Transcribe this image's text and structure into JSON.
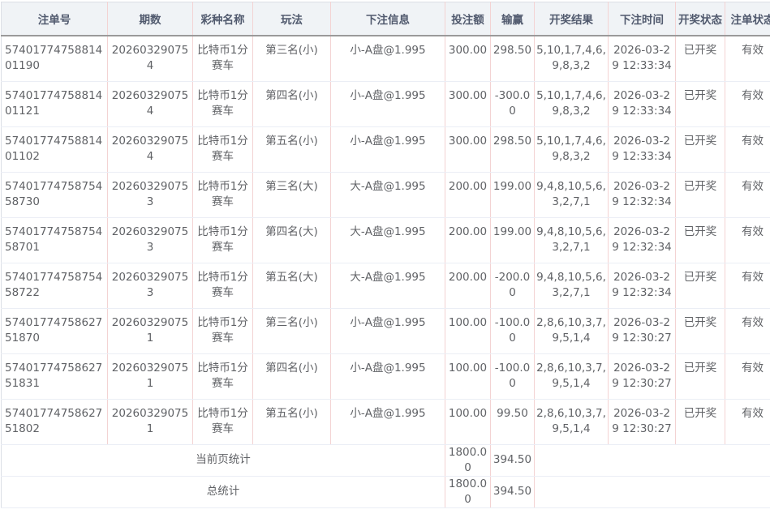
{
  "headers": [
    "注单号",
    "期数",
    "彩种名称",
    "玩法",
    "下注信息",
    "投注额",
    "输赢",
    "开奖结果",
    "下注时间",
    "开奖状态",
    "注单状态"
  ],
  "rows": [
    [
      "5740177475881401190",
      "202603290754",
      "比特币1分赛车",
      "第三名(小)",
      "小-A盘@1.995",
      "300.00",
      "298.50",
      "5,10,1,7,4,6,9,8,3,2",
      "2026-03-29 12:33:34",
      "已开奖",
      "有效"
    ],
    [
      "5740177475881401121",
      "202603290754",
      "比特币1分赛车",
      "第四名(小)",
      "小-A盘@1.995",
      "300.00",
      "-300.00",
      "5,10,1,7,4,6,9,8,3,2",
      "2026-03-29 12:33:34",
      "已开奖",
      "有效"
    ],
    [
      "5740177475881401102",
      "202603290754",
      "比特币1分赛车",
      "第五名(小)",
      "小-A盘@1.995",
      "300.00",
      "298.50",
      "5,10,1,7,4,6,9,8,3,2",
      "2026-03-29 12:33:34",
      "已开奖",
      "有效"
    ],
    [
      "5740177475875458730",
      "202603290753",
      "比特币1分赛车",
      "第三名(大)",
      "大-A盘@1.995",
      "200.00",
      "199.00",
      "9,4,8,10,5,6,3,2,7,1",
      "2026-03-29 12:32:34",
      "已开奖",
      "有效"
    ],
    [
      "5740177475875458701",
      "202603290753",
      "比特币1分赛车",
      "第四名(大)",
      "大-A盘@1.995",
      "200.00",
      "199.00",
      "9,4,8,10,5,6,3,2,7,1",
      "2026-03-29 12:32:34",
      "已开奖",
      "有效"
    ],
    [
      "5740177475875458722",
      "202603290753",
      "比特币1分赛车",
      "第五名(大)",
      "大-A盘@1.995",
      "200.00",
      "-200.00",
      "9,4,8,10,5,6,3,2,7,1",
      "2026-03-29 12:32:34",
      "已开奖",
      "有效"
    ],
    [
      "5740177475862751870",
      "202603290751",
      "比特币1分赛车",
      "第三名(小)",
      "小-A盘@1.995",
      "100.00",
      "-100.00",
      "2,8,6,10,3,7,9,5,1,4",
      "2026-03-29 12:30:27",
      "已开奖",
      "有效"
    ],
    [
      "5740177475862751831",
      "202603290751",
      "比特币1分赛车",
      "第四名(小)",
      "小-A盘@1.995",
      "100.00",
      "-100.00",
      "2,8,6,10,3,7,9,5,1,4",
      "2026-03-29 12:30:27",
      "已开奖",
      "有效"
    ],
    [
      "5740177475862751802",
      "202603290751",
      "比特币1分赛车",
      "第五名(小)",
      "小-A盘@1.995",
      "100.00",
      "99.50",
      "2,8,6,10,3,7,9,5,1,4",
      "2026-03-29 12:30:27",
      "已开奖",
      "有效"
    ]
  ],
  "summary": [
    {
      "label": "当前页统计",
      "amount": "1800.00",
      "profit": "394.50"
    },
    {
      "label": "总统计",
      "amount": "1800.00",
      "profit": "394.50"
    }
  ]
}
